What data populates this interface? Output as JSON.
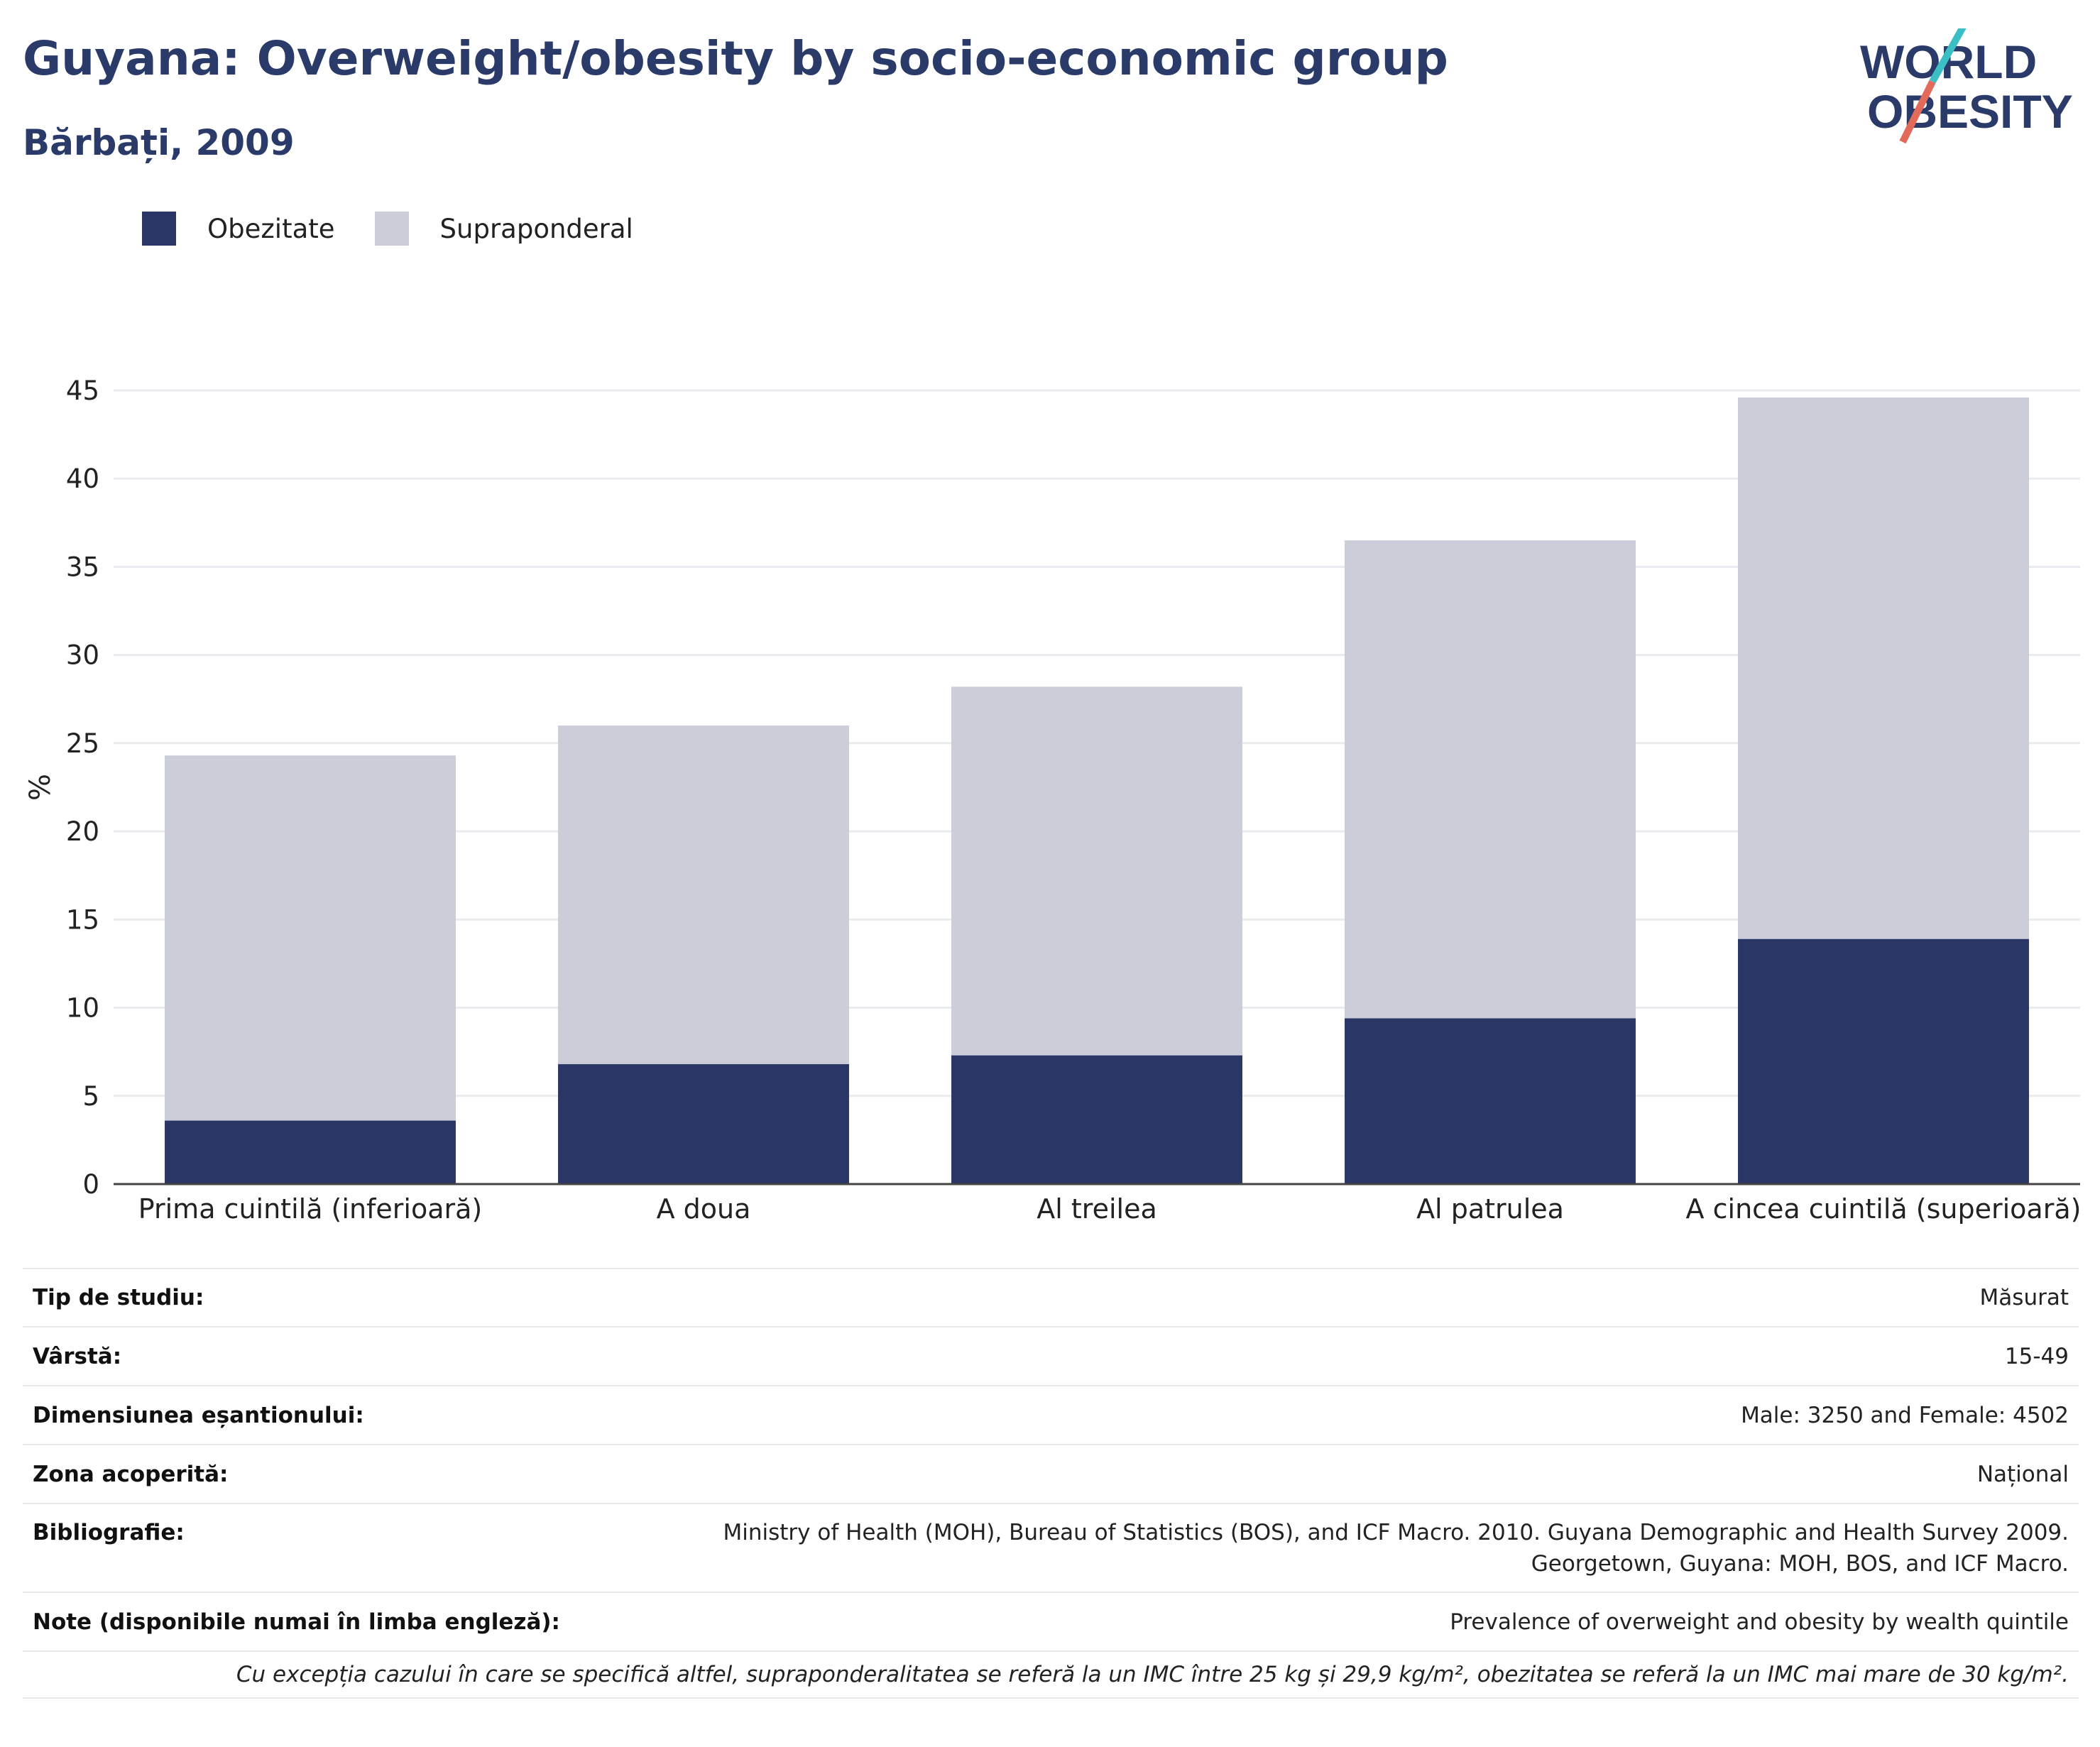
{
  "header": {
    "title": "Guyana: Overweight/obesity by socio-economic group",
    "subtitle": "Bărbați, 2009"
  },
  "logo": {
    "line1": "WORLD",
    "line2": "OBESITY"
  },
  "legend": [
    {
      "label": "Obezitate",
      "color": "#2a3665"
    },
    {
      "label": "Supraponderal",
      "color": "#cbcdd9"
    }
  ],
  "chart_data": {
    "type": "bar",
    "stacked": true,
    "categories": [
      "Prima cuintilă (inferioară)",
      "A doua",
      "Al treilea",
      "Al patrulea",
      "A cincea cuintilă (superioară)"
    ],
    "series": [
      {
        "name": "Obezitate",
        "values": [
          3.6,
          6.8,
          7.3,
          9.4,
          13.9
        ],
        "color": "#2a3665"
      },
      {
        "name": "Supraponderal",
        "values": [
          20.7,
          19.2,
          20.9,
          27.1,
          30.7
        ],
        "color": "#cbcdd9"
      }
    ],
    "ylabel": "%",
    "ylim": [
      0,
      45
    ],
    "yticks": [
      0,
      5,
      10,
      15,
      20,
      25,
      30,
      35,
      40,
      45
    ],
    "grid": true
  },
  "meta": {
    "rows": [
      {
        "key": "Tip de studiu:",
        "value": "Măsurat"
      },
      {
        "key": "Vârstă:",
        "value": "15-49"
      },
      {
        "key": "Dimensiunea eșantionului:",
        "value": "Male: 3250 and Female: 4502"
      },
      {
        "key": "Zona acoperită:",
        "value": "Național"
      },
      {
        "key": "Bibliografie:",
        "value": "Ministry of Health (MOH), Bureau of Statistics (BOS), and ICF Macro. 2010. Guyana Demographic and Health Survey 2009. Georgetown, Guyana: MOH, BOS, and ICF Macro."
      },
      {
        "key": "Note (disponibile numai în limba engleză):",
        "value": "Prevalence of overweight and obesity by wealth quintile"
      }
    ],
    "footnote": "Cu excepția cazului în care se specifică altfel, supraponderalitatea se referă la un IMC între 25 kg și 29,9 kg/m², obezitatea se referă la un IMC mai mare de 30 kg/m²."
  }
}
